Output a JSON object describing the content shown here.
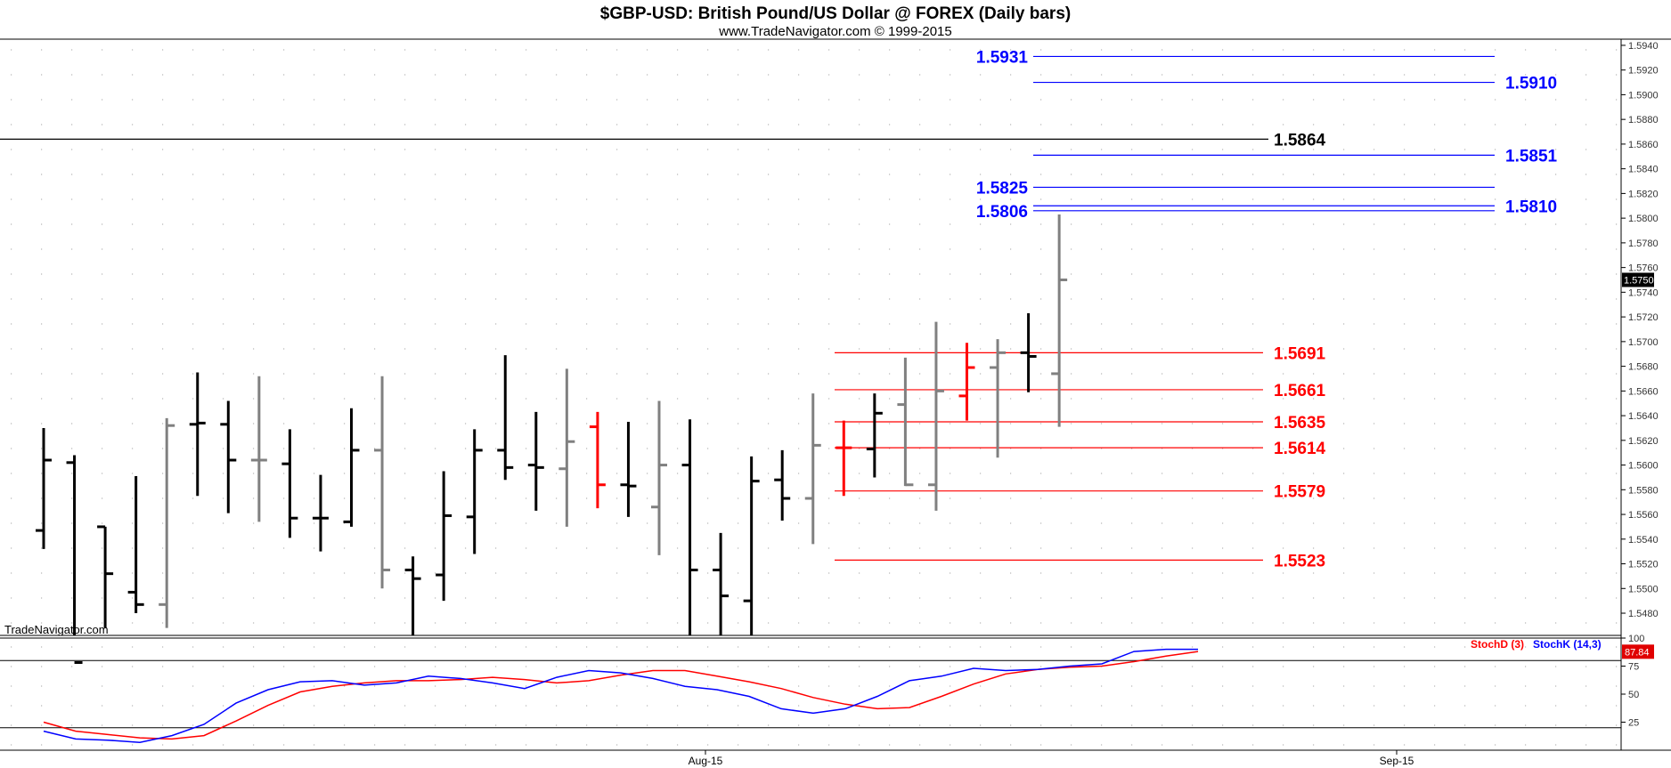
{
  "header": {
    "title": "$GBP-USD:  British Pound/US Dollar @ FOREX  (Daily bars)",
    "subtitle": "www.TradeNavigator.com © 1999-2015",
    "watermark": "TradeNavigator.com"
  },
  "colors": {
    "up_bar": "#000000",
    "down_bar": "#808080",
    "highlight_bar": "#ff0000",
    "blue_level": "#0000ff",
    "red_level": "#ff0000",
    "black_level": "#000000",
    "stoch_d": "#ff0000",
    "stoch_k": "#0000ff",
    "background": "#ffffff"
  },
  "chart_data": [
    {
      "type": "ohlc",
      "title": "$GBP-USD:  British Pound/US Dollar @ FOREX  (Daily bars)",
      "y_axis_ticks": [
        "1.5480",
        "1.5500",
        "1.5520",
        "1.5540",
        "1.5560",
        "1.5580",
        "1.5600",
        "1.5620",
        "1.5640",
        "1.5660",
        "1.5680",
        "1.5700",
        "1.5720",
        "1.5740",
        "1.5760",
        "1.5780",
        "1.5800",
        "1.5820",
        "1.5840",
        "1.5860",
        "1.5880",
        "1.5900",
        "1.5920",
        "1.5940"
      ],
      "ylim": [
        1.5462,
        1.5945
      ],
      "last_price": "1.5750",
      "x_axis_ticks": [
        "Aug-15",
        "Sep-15"
      ],
      "grid": true,
      "bars": [
        {
          "o": 1.5547,
          "h": 1.563,
          "l": 1.5532,
          "c": 1.5604,
          "color": "up"
        },
        {
          "o": 1.5602,
          "h": 1.5608,
          "l": 1.544,
          "c": 1.544,
          "color": "up"
        },
        {
          "o": 1.555,
          "h": 1.555,
          "l": 1.5468,
          "c": 1.5512,
          "color": "up"
        },
        {
          "o": 1.5497,
          "h": 1.5591,
          "l": 1.548,
          "c": 1.5487,
          "color": "up"
        },
        {
          "o": 1.5487,
          "h": 1.5638,
          "l": 1.5468,
          "c": 1.5632,
          "color": "down"
        },
        {
          "o": 1.5633,
          "h": 1.5675,
          "l": 1.5575,
          "c": 1.5634,
          "color": "up"
        },
        {
          "o": 1.5633,
          "h": 1.5652,
          "l": 1.5561,
          "c": 1.5604,
          "color": "up"
        },
        {
          "o": 1.5604,
          "h": 1.5672,
          "l": 1.5554,
          "c": 1.5604,
          "color": "down"
        },
        {
          "o": 1.5601,
          "h": 1.5629,
          "l": 1.5541,
          "c": 1.5557,
          "color": "up"
        },
        {
          "o": 1.5557,
          "h": 1.5592,
          "l": 1.553,
          "c": 1.5557,
          "color": "up"
        },
        {
          "o": 1.5554,
          "h": 1.5646,
          "l": 1.555,
          "c": 1.5612,
          "color": "up"
        },
        {
          "o": 1.5612,
          "h": 1.5672,
          "l": 1.55,
          "c": 1.5515,
          "color": "down"
        },
        {
          "o": 1.5515,
          "h": 1.5526,
          "l": 1.544,
          "c": 1.5508,
          "color": "up"
        },
        {
          "o": 1.5511,
          "h": 1.5595,
          "l": 1.549,
          "c": 1.5559,
          "color": "up"
        },
        {
          "o": 1.5558,
          "h": 1.5629,
          "l": 1.5528,
          "c": 1.5612,
          "color": "up"
        },
        {
          "o": 1.5612,
          "h": 1.5689,
          "l": 1.5588,
          "c": 1.5598,
          "color": "up"
        },
        {
          "o": 1.56,
          "h": 1.5643,
          "l": 1.5563,
          "c": 1.5598,
          "color": "up"
        },
        {
          "o": 1.5597,
          "h": 1.5678,
          "l": 1.555,
          "c": 1.5619,
          "color": "down"
        },
        {
          "o": 1.5631,
          "h": 1.5643,
          "l": 1.5565,
          "c": 1.5584,
          "color": "highlight"
        },
        {
          "o": 1.5584,
          "h": 1.5635,
          "l": 1.5558,
          "c": 1.5583,
          "color": "up"
        },
        {
          "o": 1.5566,
          "h": 1.5652,
          "l": 1.5527,
          "c": 1.56,
          "color": "down"
        },
        {
          "o": 1.56,
          "h": 1.5637,
          "l": 1.544,
          "c": 1.5515,
          "color": "up"
        },
        {
          "o": 1.5515,
          "h": 1.5545,
          "l": 1.544,
          "c": 1.5494,
          "color": "up"
        },
        {
          "o": 1.549,
          "h": 1.5607,
          "l": 1.544,
          "c": 1.5587,
          "color": "up"
        },
        {
          "o": 1.5588,
          "h": 1.5612,
          "l": 1.5555,
          "c": 1.5573,
          "color": "up"
        },
        {
          "o": 1.5573,
          "h": 1.5658,
          "l": 1.5536,
          "c": 1.5616,
          "color": "down"
        },
        {
          "o": 1.5614,
          "h": 1.5636,
          "l": 1.5575,
          "c": 1.5614,
          "color": "highlight"
        },
        {
          "o": 1.5613,
          "h": 1.5658,
          "l": 1.559,
          "c": 1.5642,
          "color": "up"
        },
        {
          "o": 1.5649,
          "h": 1.5687,
          "l": 1.5583,
          "c": 1.5584,
          "color": "down"
        },
        {
          "o": 1.5584,
          "h": 1.5716,
          "l": 1.5563,
          "c": 1.566,
          "color": "down"
        },
        {
          "o": 1.5656,
          "h": 1.5699,
          "l": 1.5636,
          "c": 1.5679,
          "color": "highlight"
        },
        {
          "o": 1.5679,
          "h": 1.5702,
          "l": 1.5606,
          "c": 1.5691,
          "color": "down"
        },
        {
          "o": 1.5691,
          "h": 1.5723,
          "l": 1.5659,
          "c": 1.5688,
          "color": "up"
        },
        {
          "o": 1.5674,
          "h": 1.5803,
          "l": 1.5631,
          "c": 1.575,
          "color": "down"
        }
      ],
      "levels": [
        {
          "value": 1.5931,
          "label": "1.5931",
          "color": "blue",
          "label_side": "left",
          "span": "right"
        },
        {
          "value": 1.591,
          "label": "1.5910",
          "color": "blue",
          "label_side": "right",
          "span": "right"
        },
        {
          "value": 1.5864,
          "label": "1.5864",
          "color": "black",
          "label_side": "right",
          "span": "full"
        },
        {
          "value": 1.5851,
          "label": "1.5851",
          "color": "blue",
          "label_side": "right",
          "span": "right"
        },
        {
          "value": 1.5825,
          "label": "1.5825",
          "color": "blue",
          "label_side": "left",
          "span": "right"
        },
        {
          "value": 1.581,
          "label": "1.5810",
          "color": "blue",
          "label_side": "right",
          "span": "right"
        },
        {
          "value": 1.5806,
          "label": "1.5806",
          "color": "blue",
          "label_side": "left",
          "span": "right"
        },
        {
          "value": 1.5691,
          "label": "1.5691",
          "color": "red",
          "label_side": "right",
          "span": "mid"
        },
        {
          "value": 1.5661,
          "label": "1.5661",
          "color": "red",
          "label_side": "right",
          "span": "mid"
        },
        {
          "value": 1.5635,
          "label": "1.5635",
          "color": "red",
          "label_side": "right",
          "span": "mid"
        },
        {
          "value": 1.5614,
          "label": "1.5614",
          "color": "red",
          "label_side": "right",
          "span": "mid"
        },
        {
          "value": 1.5579,
          "label": "1.5579",
          "color": "red",
          "label_side": "right",
          "span": "mid"
        },
        {
          "value": 1.5523,
          "label": "1.5523",
          "color": "red",
          "label_side": "right",
          "span": "mid"
        }
      ]
    },
    {
      "type": "line",
      "title": "",
      "y_axis_ticks": [
        "25",
        "50",
        "75",
        "100"
      ],
      "ylim": [
        0,
        100
      ],
      "legend": "top-right",
      "last_value": "87.84",
      "reference_lines": [
        20,
        80
      ],
      "series": [
        {
          "name": "StochD (3)",
          "color": "red",
          "values": [
            25,
            17,
            14,
            11,
            10,
            13,
            26,
            40,
            52,
            57,
            60,
            62,
            62,
            63,
            65,
            63,
            60,
            62,
            67,
            71,
            71,
            66,
            61,
            55,
            47,
            41,
            37,
            38,
            48,
            59,
            68,
            72,
            74,
            75,
            79,
            84,
            88
          ]
        },
        {
          "name": "StochK (14,3)",
          "color": "blue",
          "values": [
            17,
            10,
            9,
            7,
            13,
            23,
            42,
            54,
            61,
            62,
            58,
            60,
            66,
            64,
            60,
            55,
            65,
            71,
            69,
            64,
            57,
            54,
            48,
            37,
            33,
            37,
            48,
            62,
            66,
            73,
            71,
            72,
            75,
            77,
            88,
            90,
            90
          ]
        }
      ]
    }
  ]
}
